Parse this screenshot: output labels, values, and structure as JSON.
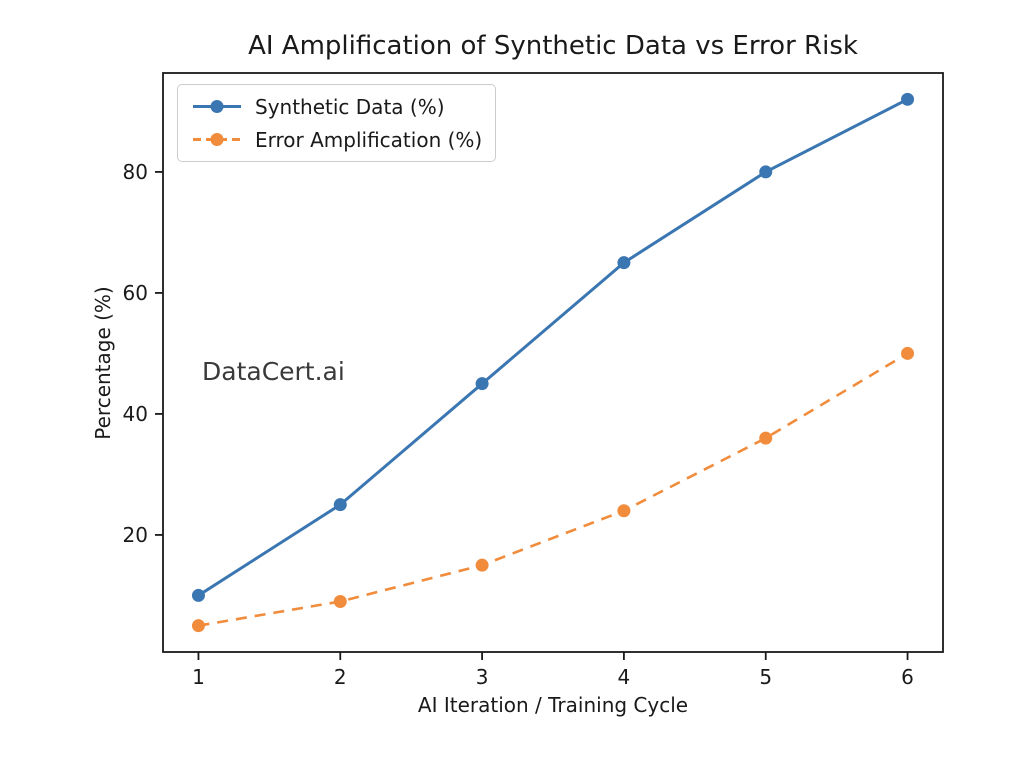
{
  "figure": {
    "background": "#ffffff",
    "watermark": "DataCert.ai"
  },
  "chart_data": {
    "type": "line",
    "title": "AI Amplification of Synthetic Data vs Error Risk",
    "xlabel": "AI Iteration / Training Cycle",
    "ylabel": "Percentage (%)",
    "x": [
      1,
      2,
      3,
      4,
      5,
      6
    ],
    "series": [
      {
        "name": "Synthetic Data (%)",
        "values": [
          10,
          25,
          45,
          65,
          80,
          92
        ],
        "color": "#3a76b1",
        "line_style": "solid",
        "line_width": 3,
        "marker": "circle"
      },
      {
        "name": "Error Amplification (%)",
        "values": [
          5,
          9,
          15,
          24,
          36,
          50
        ],
        "color": "#f08c3c",
        "line_style": "dashed",
        "line_width": 2.6,
        "marker": "circle"
      }
    ],
    "xticks": [
      "1",
      "2",
      "3",
      "4",
      "5",
      "6"
    ],
    "xtick_values": [
      1,
      2,
      3,
      4,
      5,
      6
    ],
    "yticks": [
      "20",
      "40",
      "60",
      "80"
    ],
    "ytick_values": [
      20,
      40,
      60,
      80
    ],
    "xlim": [
      0.75,
      6.25
    ],
    "ylim": [
      0.65,
      96.35
    ],
    "grid": false,
    "legend_position": "upper left",
    "axis_color": "#1a1a1a",
    "text_color": "#1a1a1a",
    "marker_radius": 6.5
  }
}
